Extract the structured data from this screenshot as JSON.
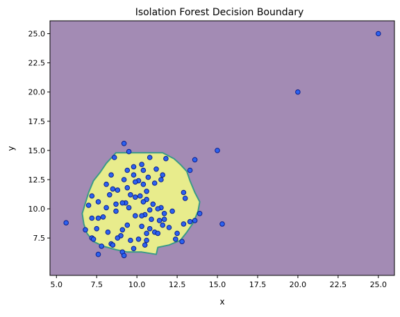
{
  "chart_data": {
    "type": "scatter",
    "title": "Isolation Forest Decision Boundary",
    "xlabel": "x",
    "ylabel": "y",
    "xlim": [
      4.6,
      26.0
    ],
    "ylim": [
      4.3,
      26.1
    ],
    "xticks": [
      5.0,
      7.5,
      10.0,
      12.5,
      15.0,
      17.5,
      20.0,
      22.5,
      25.0
    ],
    "yticks": [
      7.5,
      10.0,
      12.5,
      15.0,
      17.5,
      20.0,
      22.5,
      25.0
    ],
    "xtick_labels": [
      "5.0",
      "7.5",
      "10.0",
      "12.5",
      "15.0",
      "17.5",
      "20.0",
      "22.5",
      "25.0"
    ],
    "ytick_labels": [
      "7.5",
      "10.0",
      "12.5",
      "15.0",
      "17.5",
      "20.0",
      "22.5",
      "25.0"
    ],
    "grid": false,
    "colors": {
      "background_region": "#a38bb4",
      "inlier_region": "#e8ec8c",
      "boundary_line": "#3a9a88",
      "point_fill": "#2c62f0",
      "point_edge": "#0a1e8c"
    },
    "inlier_region_boundary": [
      [
        8.7,
        14.8
      ],
      [
        11.6,
        14.8
      ],
      [
        12.3,
        14.3
      ],
      [
        12.7,
        13.8
      ],
      [
        13.1,
        13.2
      ],
      [
        13.3,
        12.4
      ],
      [
        13.6,
        11.4
      ],
      [
        13.9,
        10.6
      ],
      [
        13.8,
        9.8
      ],
      [
        13.5,
        8.8
      ],
      [
        13.1,
        8.0
      ],
      [
        12.7,
        7.3
      ],
      [
        12.0,
        6.9
      ],
      [
        11.3,
        6.7
      ],
      [
        11.2,
        6.1
      ],
      [
        10.3,
        6.3
      ],
      [
        9.4,
        6.3
      ],
      [
        8.7,
        6.5
      ],
      [
        7.9,
        6.8
      ],
      [
        7.3,
        7.2
      ],
      [
        6.9,
        7.9
      ],
      [
        6.7,
        8.7
      ],
      [
        6.6,
        9.6
      ],
      [
        6.8,
        10.5
      ],
      [
        7.0,
        11.4
      ],
      [
        7.3,
        12.4
      ],
      [
        7.7,
        13.1
      ],
      [
        8.1,
        13.9
      ],
      [
        8.5,
        14.5
      ]
    ],
    "points": [
      {
        "x": 9.2,
        "y": 15.6
      },
      {
        "x": 9.5,
        "y": 14.9
      },
      {
        "x": 8.6,
        "y": 14.4
      },
      {
        "x": 10.8,
        "y": 14.4
      },
      {
        "x": 11.8,
        "y": 14.3
      },
      {
        "x": 10.3,
        "y": 13.8
      },
      {
        "x": 9.8,
        "y": 13.6
      },
      {
        "x": 9.4,
        "y": 13.3
      },
      {
        "x": 10.4,
        "y": 13.3
      },
      {
        "x": 11.2,
        "y": 13.4
      },
      {
        "x": 8.4,
        "y": 12.9
      },
      {
        "x": 9.8,
        "y": 12.9
      },
      {
        "x": 11.6,
        "y": 12.9
      },
      {
        "x": 10.7,
        "y": 12.7
      },
      {
        "x": 9.2,
        "y": 12.5
      },
      {
        "x": 10.1,
        "y": 12.4
      },
      {
        "x": 9.9,
        "y": 12.3
      },
      {
        "x": 11.5,
        "y": 12.5
      },
      {
        "x": 8.1,
        "y": 12.1
      },
      {
        "x": 10.4,
        "y": 12.1
      },
      {
        "x": 11.1,
        "y": 12.2
      },
      {
        "x": 9.4,
        "y": 11.8
      },
      {
        "x": 8.5,
        "y": 11.7
      },
      {
        "x": 8.8,
        "y": 11.6
      },
      {
        "x": 10.6,
        "y": 11.5
      },
      {
        "x": 9.6,
        "y": 11.2
      },
      {
        "x": 8.3,
        "y": 11.2
      },
      {
        "x": 10.2,
        "y": 11.1
      },
      {
        "x": 7.2,
        "y": 11.1
      },
      {
        "x": 9.9,
        "y": 11.0
      },
      {
        "x": 10.6,
        "y": 10.8
      },
      {
        "x": 12.9,
        "y": 11.4
      },
      {
        "x": 13.0,
        "y": 10.9
      },
      {
        "x": 10.4,
        "y": 10.6
      },
      {
        "x": 9.3,
        "y": 10.5
      },
      {
        "x": 7.6,
        "y": 10.6
      },
      {
        "x": 9.1,
        "y": 10.5
      },
      {
        "x": 8.7,
        "y": 10.4
      },
      {
        "x": 11.0,
        "y": 10.4
      },
      {
        "x": 7.0,
        "y": 10.3
      },
      {
        "x": 8.1,
        "y": 10.1
      },
      {
        "x": 9.5,
        "y": 10.1
      },
      {
        "x": 11.5,
        "y": 10.1
      },
      {
        "x": 11.3,
        "y": 10.0
      },
      {
        "x": 10.8,
        "y": 9.9
      },
      {
        "x": 8.7,
        "y": 9.8
      },
      {
        "x": 12.2,
        "y": 9.8
      },
      {
        "x": 11.7,
        "y": 9.6
      },
      {
        "x": 10.5,
        "y": 9.5
      },
      {
        "x": 9.9,
        "y": 9.4
      },
      {
        "x": 10.3,
        "y": 9.4
      },
      {
        "x": 7.9,
        "y": 9.3
      },
      {
        "x": 7.2,
        "y": 9.2
      },
      {
        "x": 7.6,
        "y": 9.2
      },
      {
        "x": 10.9,
        "y": 9.1
      },
      {
        "x": 11.4,
        "y": 9.0
      },
      {
        "x": 11.7,
        "y": 9.1
      },
      {
        "x": 13.6,
        "y": 9.0
      },
      {
        "x": 13.3,
        "y": 8.9
      },
      {
        "x": 12.9,
        "y": 8.7
      },
      {
        "x": 9.4,
        "y": 8.6
      },
      {
        "x": 10.3,
        "y": 8.5
      },
      {
        "x": 11.6,
        "y": 8.6
      },
      {
        "x": 12.0,
        "y": 8.4
      },
      {
        "x": 10.8,
        "y": 8.3
      },
      {
        "x": 9.1,
        "y": 8.2
      },
      {
        "x": 7.5,
        "y": 8.3
      },
      {
        "x": 6.8,
        "y": 8.2
      },
      {
        "x": 8.2,
        "y": 8.0
      },
      {
        "x": 10.6,
        "y": 7.9
      },
      {
        "x": 11.1,
        "y": 8.0
      },
      {
        "x": 11.3,
        "y": 7.9
      },
      {
        "x": 9.0,
        "y": 7.7
      },
      {
        "x": 12.5,
        "y": 7.9
      },
      {
        "x": 8.8,
        "y": 7.5
      },
      {
        "x": 7.2,
        "y": 7.5
      },
      {
        "x": 7.3,
        "y": 7.4
      },
      {
        "x": 10.1,
        "y": 7.4
      },
      {
        "x": 10.6,
        "y": 7.3
      },
      {
        "x": 12.4,
        "y": 7.4
      },
      {
        "x": 9.6,
        "y": 7.3
      },
      {
        "x": 8.4,
        "y": 7.0
      },
      {
        "x": 8.5,
        "y": 6.9
      },
      {
        "x": 10.5,
        "y": 6.9
      },
      {
        "x": 12.8,
        "y": 7.2
      },
      {
        "x": 7.8,
        "y": 6.8
      },
      {
        "x": 9.8,
        "y": 6.6
      },
      {
        "x": 9.1,
        "y": 6.3
      },
      {
        "x": 7.6,
        "y": 6.1
      },
      {
        "x": 9.2,
        "y": 6.0
      },
      {
        "x": 5.6,
        "y": 8.8
      },
      {
        "x": 13.3,
        "y": 13.3
      },
      {
        "x": 13.6,
        "y": 14.2
      },
      {
        "x": 15.0,
        "y": 15.0
      },
      {
        "x": 13.9,
        "y": 9.6
      },
      {
        "x": 15.3,
        "y": 8.7
      },
      {
        "x": 20.0,
        "y": 20.0
      },
      {
        "x": 25.0,
        "y": 25.0
      }
    ]
  }
}
